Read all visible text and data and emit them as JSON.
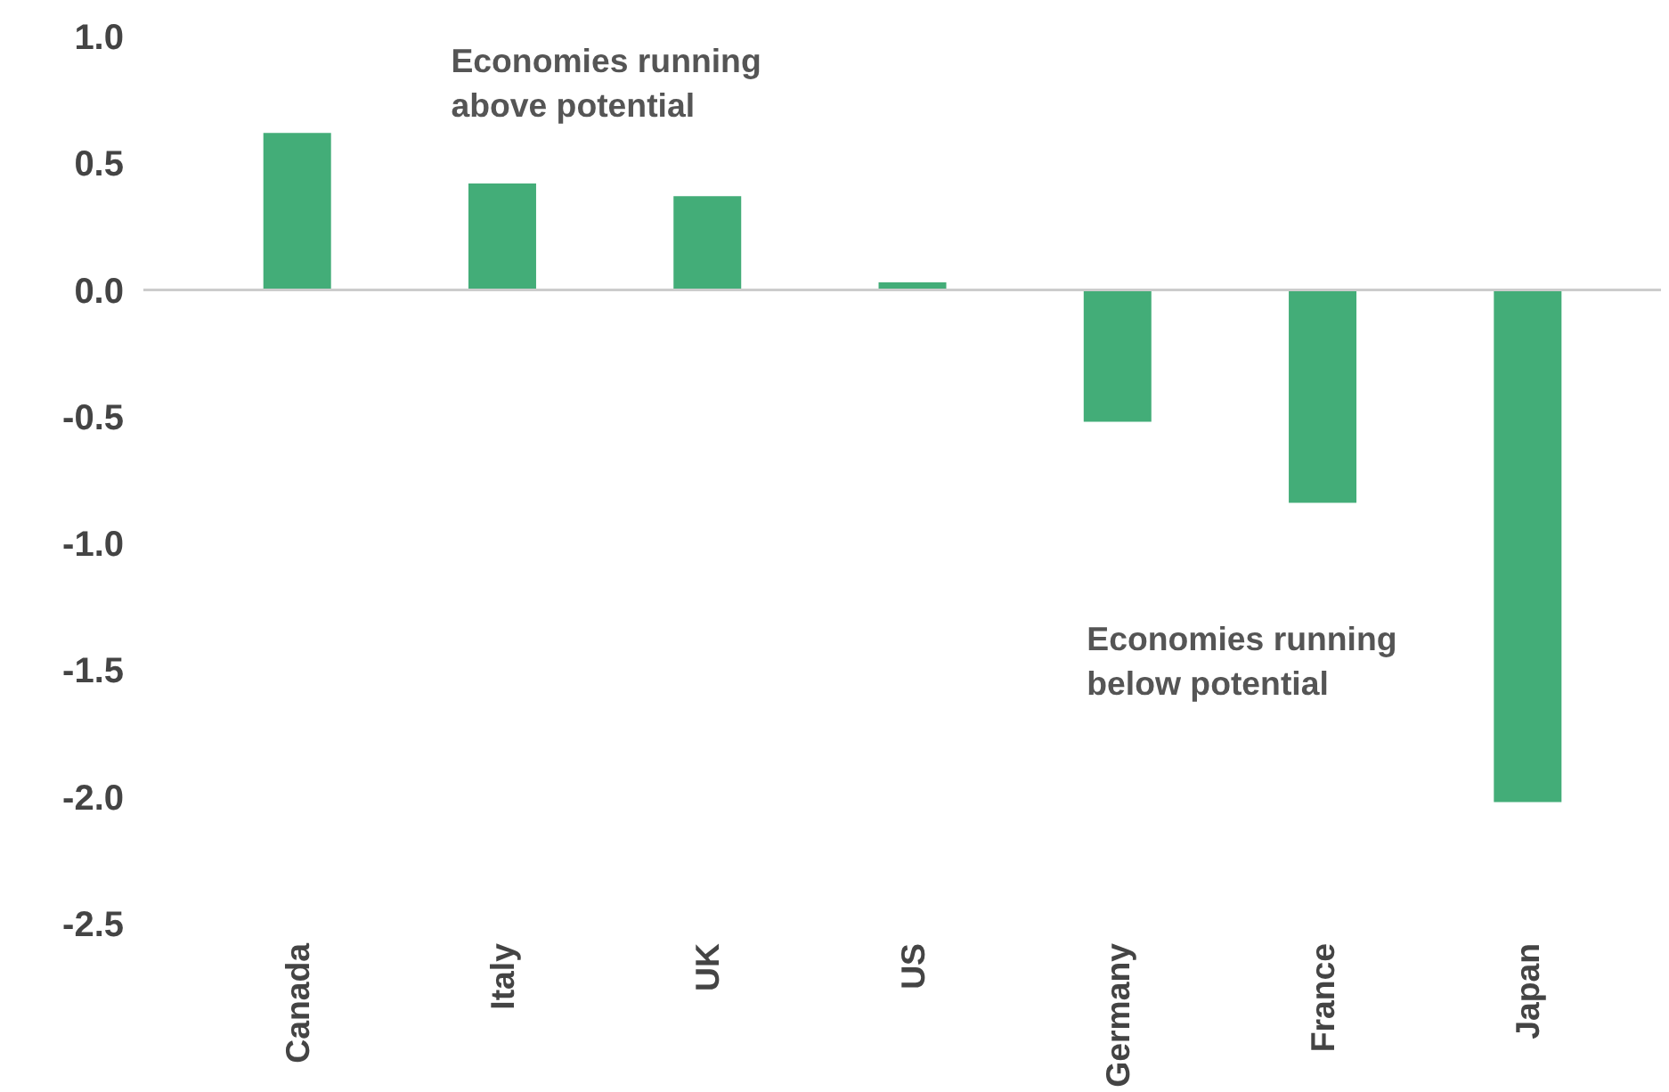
{
  "chart_data": {
    "type": "bar",
    "categories": [
      "Canada",
      "Italy",
      "UK",
      "US",
      "Germany",
      "France",
      "Japan"
    ],
    "values": [
      0.62,
      0.42,
      0.37,
      0.03,
      -0.52,
      -0.84,
      -2.02
    ],
    "color": "#43ad78",
    "ylim": [
      -2.5,
      1.0
    ],
    "yticks": [
      {
        "value": 1.0,
        "label": "1.0"
      },
      {
        "value": 0.5,
        "label": "0.5"
      },
      {
        "value": 0,
        "label": "0.0"
      },
      {
        "value": -0.5,
        "label": "-0.5"
      },
      {
        "value": -1.0,
        "label": "-1.0"
      },
      {
        "value": -1.5,
        "label": "-1.5"
      },
      {
        "value": -2.0,
        "label": "-2.0"
      },
      {
        "value": -2.5,
        "label": "-2.5"
      }
    ],
    "annotations": [
      "Economies running\nabove potential",
      "Economies running\nbelow potential"
    ],
    "ref_lines": [
      {
        "axis": "y",
        "value": 0,
        "color": "#cccccc"
      }
    ],
    "grid": false
  }
}
